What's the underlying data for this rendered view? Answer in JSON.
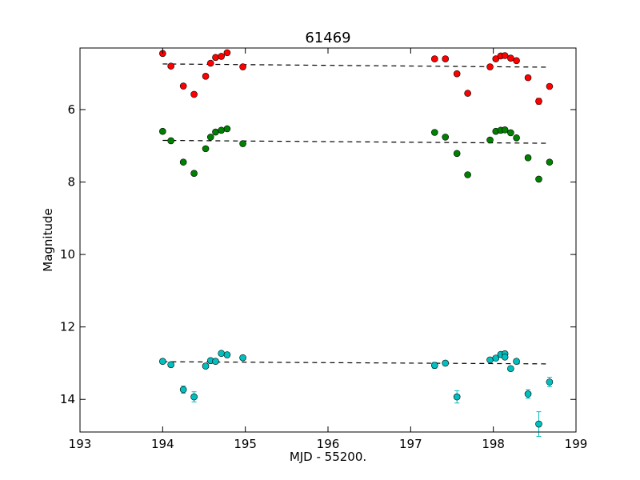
{
  "chart_data": {
    "type": "scatter",
    "title": "61469",
    "xlabel": "MJD - 55200.",
    "ylabel": "Magnitude",
    "xlim": [
      193,
      199
    ],
    "ylim": [
      14.9,
      4.3
    ],
    "y_inverted": true,
    "grid": false,
    "x_ticks": [
      "193",
      "194",
      "195",
      "196",
      "197",
      "198",
      "199"
    ],
    "y_ticks": [
      "6",
      "8",
      "10",
      "12",
      "14"
    ],
    "series": [
      {
        "color": "#ff0000",
        "x": [
          194.0,
          194.1,
          194.25,
          194.38,
          194.52,
          194.58,
          194.64,
          194.71,
          194.78,
          194.97,
          197.29,
          197.42,
          197.56,
          197.69,
          197.96,
          198.03,
          198.09,
          198.14,
          198.21,
          198.28,
          198.42,
          198.55,
          198.68
        ],
        "y": [
          4.45,
          4.8,
          5.35,
          5.58,
          5.08,
          4.72,
          4.56,
          4.53,
          4.43,
          4.82,
          4.6,
          4.6,
          5.01,
          5.55,
          4.82,
          4.6,
          4.52,
          4.51,
          4.58,
          4.65,
          5.12,
          5.77,
          5.36
        ],
        "yerr": [
          0.03,
          0.03,
          0.04,
          0.05,
          0.03,
          0.03,
          0.03,
          0.03,
          0.03,
          0.03,
          0.03,
          0.03,
          0.03,
          0.05,
          0.03,
          0.03,
          0.03,
          0.03,
          0.03,
          0.03,
          0.04,
          0.08,
          0.04
        ]
      },
      {
        "color": "#008000",
        "x": [
          194.0,
          194.1,
          194.25,
          194.38,
          194.52,
          194.58,
          194.64,
          194.71,
          194.78,
          194.97,
          197.29,
          197.42,
          197.56,
          197.69,
          197.96,
          198.03,
          198.09,
          198.14,
          198.21,
          198.28,
          198.42,
          198.55,
          198.68
        ],
        "y": [
          6.6,
          6.86,
          7.45,
          7.76,
          7.08,
          6.76,
          6.62,
          6.57,
          6.53,
          6.94,
          6.63,
          6.76,
          7.21,
          7.8,
          6.84,
          6.6,
          6.57,
          6.56,
          6.64,
          6.78,
          7.33,
          7.92,
          7.45
        ],
        "yerr": [
          0.03,
          0.03,
          0.03,
          0.04,
          0.03,
          0.03,
          0.03,
          0.03,
          0.03,
          0.03,
          0.03,
          0.03,
          0.03,
          0.04,
          0.03,
          0.03,
          0.03,
          0.03,
          0.03,
          0.03,
          0.04,
          0.05,
          0.04
        ]
      },
      {
        "color": "#00bfbf",
        "x": [
          194.0,
          194.1,
          194.25,
          194.38,
          194.52,
          194.58,
          194.64,
          194.71,
          194.78,
          194.97,
          197.29,
          197.42,
          197.56,
          197.96,
          198.03,
          198.09,
          198.14,
          198.14,
          198.21,
          198.28,
          198.42,
          198.55,
          198.68
        ],
        "y": [
          12.95,
          13.04,
          13.73,
          13.93,
          13.08,
          12.93,
          12.95,
          12.73,
          12.77,
          12.85,
          13.06,
          13.0,
          13.93,
          12.91,
          12.86,
          12.76,
          12.74,
          12.83,
          13.15,
          12.95,
          13.85,
          14.68,
          13.52
        ],
        "yerr": [
          0.05,
          0.06,
          0.1,
          0.14,
          0.06,
          0.05,
          0.05,
          0.05,
          0.05,
          0.05,
          0.08,
          0.06,
          0.17,
          0.05,
          0.05,
          0.05,
          0.05,
          0.05,
          0.06,
          0.05,
          0.12,
          0.34,
          0.13
        ]
      }
    ],
    "fit_lines": [
      {
        "color": "#000000",
        "style": "dashed",
        "x": [
          194.0,
          198.68
        ],
        "y": [
          4.74,
          4.83
        ]
      },
      {
        "color": "#000000",
        "style": "dashed",
        "x": [
          194.0,
          198.68
        ],
        "y": [
          6.85,
          6.93
        ]
      },
      {
        "color": "#000000",
        "style": "dashed",
        "x": [
          194.0,
          198.68
        ],
        "y": [
          12.96,
          13.02
        ]
      }
    ]
  }
}
